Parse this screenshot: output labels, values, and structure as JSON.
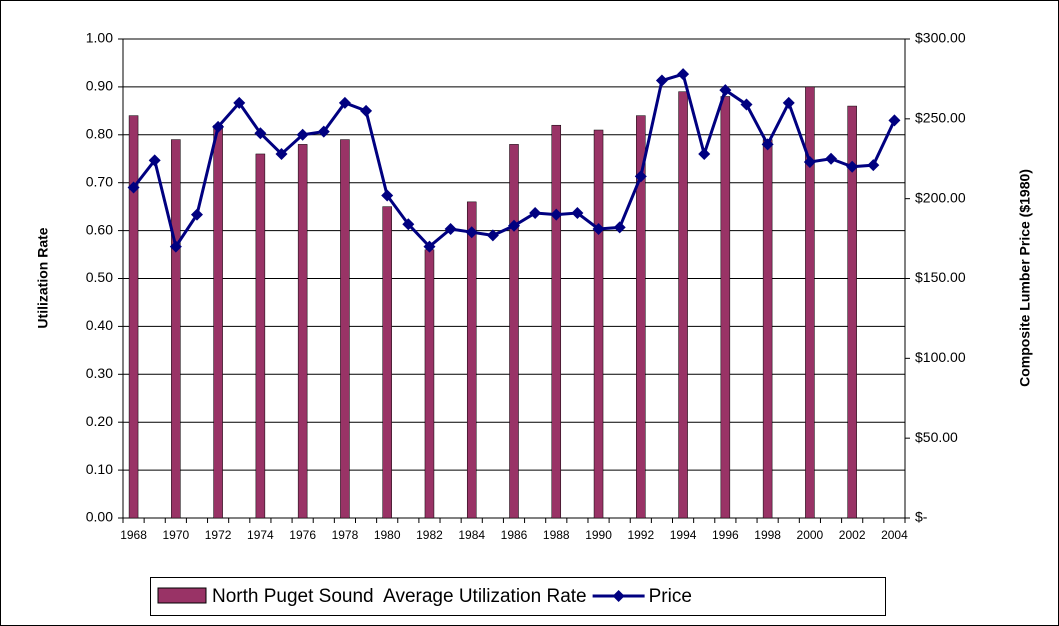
{
  "chart_data": {
    "type": "bar-line",
    "y_label": "Utilization Rate",
    "y2_label": "Composite Lumber Price ($1980)",
    "categories": [
      "1968",
      null,
      "1970",
      null,
      "1972",
      null,
      "1974",
      null,
      "1976",
      null,
      "1978",
      null,
      "1980",
      null,
      "1982",
      null,
      "1984",
      null,
      "1986",
      null,
      "1988",
      null,
      "1990",
      null,
      "1992",
      null,
      "1994",
      null,
      "1996",
      null,
      "1998",
      null,
      "2000",
      null,
      "2002",
      null,
      "2004"
    ],
    "series": [
      {
        "name": "North Puget Sound  Average Utilization Rate",
        "type": "bar",
        "color": "#993366",
        "values": [
          0.84,
          null,
          0.79,
          null,
          0.82,
          null,
          0.76,
          null,
          0.78,
          null,
          0.79,
          null,
          0.65,
          null,
          0.56,
          null,
          0.66,
          null,
          0.78,
          null,
          0.82,
          null,
          0.81,
          null,
          0.84,
          null,
          0.89,
          null,
          0.88,
          null,
          0.79,
          null,
          0.9,
          null,
          0.86,
          null,
          null
        ]
      },
      {
        "name": "Price",
        "type": "line",
        "axis": "y2",
        "color": "#000080",
        "values": [
          207,
          224,
          170,
          190,
          245,
          260,
          241,
          228,
          240,
          242,
          260,
          255,
          202,
          184,
          170,
          181,
          179,
          177,
          183,
          191,
          190,
          191,
          181,
          182,
          214,
          274,
          278,
          228,
          268,
          259,
          234,
          260,
          223,
          225,
          220,
          221,
          249
        ]
      }
    ],
    "ylim": [
      0,
      1
    ],
    "yticks": [
      {
        "value": 0,
        "label": "0.00"
      },
      {
        "value": 0.1,
        "label": "0.10"
      },
      {
        "value": 0.2,
        "label": "0.20"
      },
      {
        "value": 0.3,
        "label": "0.30"
      },
      {
        "value": 0.4,
        "label": "0.40"
      },
      {
        "value": 0.5,
        "label": "0.50"
      },
      {
        "value": 0.6,
        "label": "0.60"
      },
      {
        "value": 0.7,
        "label": "0.70"
      },
      {
        "value": 0.8,
        "label": "0.80"
      },
      {
        "value": 0.9,
        "label": "0.90"
      },
      {
        "value": 1,
        "label": "1.00"
      }
    ],
    "y2lim": [
      0,
      300
    ],
    "y2ticks": [
      {
        "value": 0,
        "label": "$-"
      },
      {
        "value": 50,
        "label": "$50.00"
      },
      {
        "value": 100,
        "label": "$100.00"
      },
      {
        "value": 150,
        "label": "$150.00"
      },
      {
        "value": 200,
        "label": "$200.00"
      },
      {
        "value": 250,
        "label": "$250.00"
      },
      {
        "value": 300,
        "label": "$300.00"
      }
    ],
    "grid": true,
    "legend": "bottom"
  }
}
